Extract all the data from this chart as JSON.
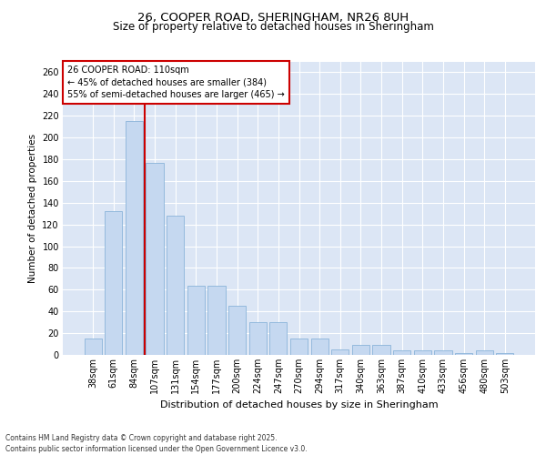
{
  "title_line1": "26, COOPER ROAD, SHERINGHAM, NR26 8UH",
  "title_line2": "Size of property relative to detached houses in Sheringham",
  "xlabel": "Distribution of detached houses by size in Sheringham",
  "ylabel": "Number of detached properties",
  "categories": [
    "38sqm",
    "61sqm",
    "84sqm",
    "107sqm",
    "131sqm",
    "154sqm",
    "177sqm",
    "200sqm",
    "224sqm",
    "247sqm",
    "270sqm",
    "294sqm",
    "317sqm",
    "340sqm",
    "363sqm",
    "387sqm",
    "410sqm",
    "433sqm",
    "456sqm",
    "480sqm",
    "503sqm"
  ],
  "values": [
    15,
    132,
    215,
    177,
    128,
    64,
    64,
    45,
    30,
    30,
    15,
    15,
    5,
    9,
    9,
    4,
    4,
    4,
    2,
    4,
    2
  ],
  "bar_color": "#c5d8f0",
  "bar_edge_color": "#8ab4d9",
  "plot_bg_color": "#dce6f5",
  "fig_bg_color": "#ffffff",
  "grid_color": "#ffffff",
  "annotation_text_line1": "26 COOPER ROAD: 110sqm",
  "annotation_text_line2": "← 45% of detached houses are smaller (384)",
  "annotation_text_line3": "55% of semi-detached houses are larger (465) →",
  "annotation_box_color": "#ffffff",
  "annotation_box_edge_color": "#cc0000",
  "vline_color": "#cc0000",
  "vline_x_index": 3,
  "footer_text": "Contains HM Land Registry data © Crown copyright and database right 2025.\nContains public sector information licensed under the Open Government Licence v3.0.",
  "ylim": [
    0,
    270
  ],
  "yticks": [
    0,
    20,
    40,
    60,
    80,
    100,
    120,
    140,
    160,
    180,
    200,
    220,
    240,
    260
  ],
  "title1_fontsize": 9.5,
  "title2_fontsize": 8.5,
  "xlabel_fontsize": 8,
  "ylabel_fontsize": 7.5,
  "tick_fontsize": 7,
  "annot_fontsize": 7,
  "footer_fontsize": 5.5
}
